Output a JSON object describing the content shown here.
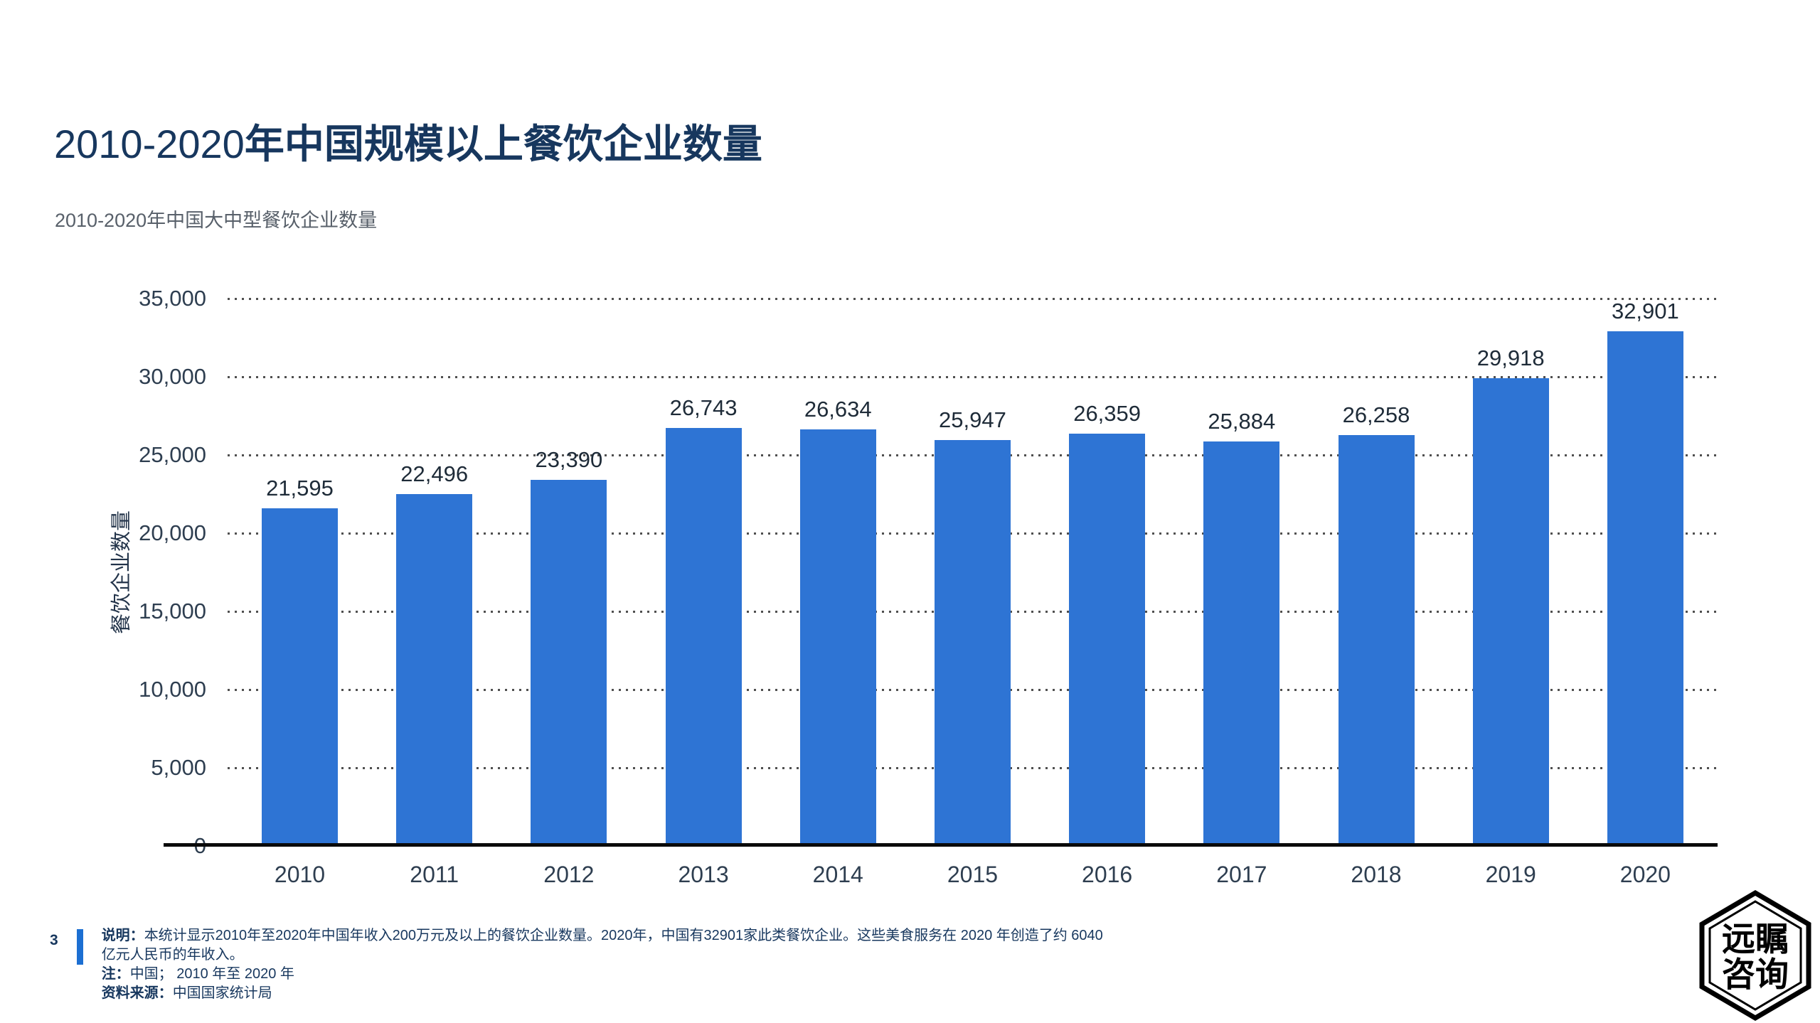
{
  "page": {
    "number": "3"
  },
  "header": {
    "title_prefix": "2010-2020",
    "title_suffix": "年中国规模以上餐饮企业数量",
    "subtitle": "2010-2020年中国大中型餐饮企业数量"
  },
  "chart_data": {
    "type": "bar",
    "title": "2010-2020年中国规模以上餐饮企业数量",
    "subtitle": "2010-2020年中国大中型餐饮企业数量",
    "categories": [
      "2010",
      "2011",
      "2012",
      "2013",
      "2014",
      "2015",
      "2016",
      "2017",
      "2018",
      "2019",
      "2020"
    ],
    "values": [
      21595,
      22496,
      23390,
      26743,
      26634,
      25947,
      26359,
      25884,
      26258,
      29918,
      32901
    ],
    "value_labels": [
      "21,595",
      "22,496",
      "23,390",
      "26,743",
      "26,634",
      "25,947",
      "26,359",
      "25,884",
      "26,258",
      "29,918",
      "32,901"
    ],
    "xlabel": "",
    "ylabel": "餐饮企业数量",
    "ylim": [
      0,
      35000
    ],
    "ytick_values": [
      0,
      5000,
      10000,
      15000,
      20000,
      25000,
      30000,
      35000
    ],
    "ytick_labels": [
      "0",
      "5,000",
      "10,000",
      "15,000",
      "20,000",
      "25,000",
      "30,000",
      "35,000"
    ],
    "grid": "horizontal-dotted",
    "legend": "none",
    "bar_color": "#2E74D4"
  },
  "footer": {
    "note_label": "说明：",
    "note_text": "本统计显示2010年至2020年中国年收入200万元及以上的餐饮企业数量。2020年，中国有32901家此类餐饮企业。这些美食服务在 2020 年创造了约 6040 亿元人民币的年收入。",
    "scope_label": "注：",
    "scope_text": "中国； 2010 年至 2020 年",
    "source_label": "资料来源：",
    "source_text": "中国国家统计局"
  },
  "logo": {
    "name": "远瞩咨询",
    "line1": "远瞩",
    "line2": "咨询"
  },
  "colors": {
    "bar": "#2E74D4",
    "title": "#17375E",
    "subtitle": "#58606A",
    "axis_text": "#2E3E50",
    "footer_accent": "#1C6FD2",
    "baseline": "#0A0A0A",
    "background": "#FFFFFF"
  }
}
